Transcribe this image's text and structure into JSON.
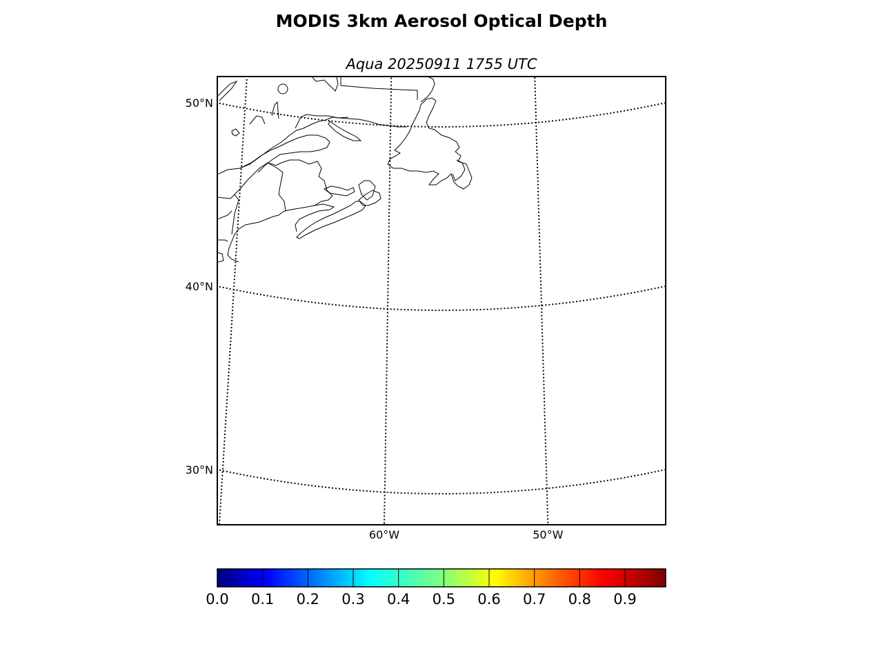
{
  "title": "MODIS 3km Aerosol Optical Depth",
  "subtitle": "Aqua 20250911 1755 UTC",
  "map": {
    "projection": "lambert-conformal",
    "parallels": [
      {
        "lat": 50,
        "label": "50°N"
      },
      {
        "lat": 40,
        "label": "40°N"
      },
      {
        "lat": 30,
        "label": "30°N"
      }
    ],
    "meridians": [
      {
        "lon": -70,
        "label": ""
      },
      {
        "lon": -60,
        "label": "60°W"
      },
      {
        "lon": -50,
        "label": "50°W"
      },
      {
        "lon": -40,
        "label": ""
      }
    ],
    "features": [
      "coastlines",
      "country-borders",
      "state-borders"
    ],
    "regions": [
      "Nova Scotia",
      "New Brunswick",
      "Newfoundland",
      "Prince Edward Island",
      "Quebec",
      "Maine"
    ]
  },
  "colorbar": {
    "colormap": "jet",
    "min": 0.0,
    "max": 1.0,
    "ticks": [
      "0.0",
      "0.1",
      "0.2",
      "0.3",
      "0.4",
      "0.5",
      "0.6",
      "0.7",
      "0.8",
      "0.9"
    ],
    "colors": [
      "#00007f",
      "#0000ff",
      "#007fff",
      "#00ffff",
      "#7fff7f",
      "#ffff00",
      "#ff7f00",
      "#ff0000",
      "#7f0000"
    ]
  }
}
